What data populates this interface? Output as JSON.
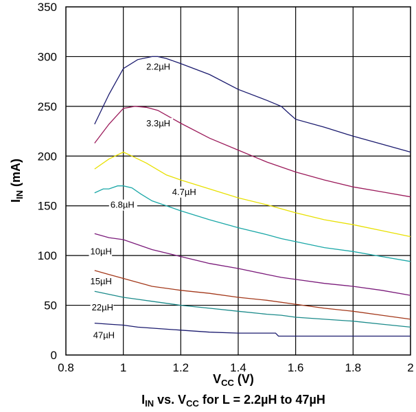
{
  "chart_data": {
    "type": "line",
    "xlim": [
      0.8,
      2.0
    ],
    "ylim": [
      0,
      350
    ],
    "x_ticks": [
      "0.8",
      "1",
      "1.2",
      "1.4",
      "1.6",
      "1.8",
      "2"
    ],
    "y_ticks": [
      "0",
      "50",
      "100",
      "150",
      "200",
      "250",
      "300",
      "350"
    ],
    "x_tick_values": [
      0.8,
      1.0,
      1.2,
      1.4,
      1.6,
      1.8,
      2.0
    ],
    "y_tick_values": [
      0,
      50,
      100,
      150,
      200,
      250,
      300,
      350
    ],
    "xlabel": {
      "main": "V",
      "sub": "CC",
      "rest": " (V)"
    },
    "ylabel": {
      "main": "I",
      "sub": "IN",
      "rest": " (mA)"
    },
    "caption": {
      "p1": "I",
      "p1sub": "IN",
      "p2": " vs. V",
      "p2sub": "CC",
      "p3": " for L = 2.2µH to 47µH"
    },
    "grid": true,
    "series": [
      {
        "name": "2.2µH",
        "color": "#1a1a6e",
        "label_at": [
          1.08,
          287
        ],
        "x": [
          0.9,
          0.95,
          1.0,
          1.05,
          1.1,
          1.12,
          1.15,
          1.2,
          1.3,
          1.4,
          1.5,
          1.55,
          1.58,
          1.6,
          1.7,
          1.8,
          1.9,
          2.0
        ],
        "y": [
          232,
          262,
          288,
          297,
          300,
          300,
          298,
          293,
          282,
          267,
          256,
          250,
          242,
          237,
          229,
          220,
          212,
          204
        ]
      },
      {
        "name": "3.3µH",
        "color": "#9b1a5a",
        "label_at": [
          1.08,
          230
        ],
        "x": [
          0.9,
          0.95,
          1.0,
          1.04,
          1.08,
          1.12,
          1.2,
          1.3,
          1.4,
          1.5,
          1.6,
          1.7,
          1.8,
          1.9,
          2.0
        ],
        "y": [
          213,
          232,
          248,
          250,
          249,
          246,
          233,
          218,
          206,
          194,
          184,
          176,
          169,
          164,
          159
        ]
      },
      {
        "name": "4.7µH",
        "color": "#e8e000",
        "label_at": [
          1.17,
          161
        ],
        "x": [
          0.9,
          0.95,
          1.0,
          1.03,
          1.08,
          1.15,
          1.2,
          1.3,
          1.4,
          1.5,
          1.6,
          1.7,
          1.8,
          1.9,
          2.0
        ],
        "y": [
          187,
          197,
          204,
          200,
          193,
          181,
          176,
          167,
          158,
          151,
          143,
          136,
          131,
          125,
          119
        ]
      },
      {
        "name": "6.8µH",
        "color": "#1aa7a7",
        "label_at": [
          0.955,
          148
        ],
        "x": [
          0.9,
          0.93,
          0.95,
          0.98,
          1.0,
          1.03,
          1.06,
          1.1,
          1.2,
          1.3,
          1.4,
          1.5,
          1.55,
          1.6,
          1.7,
          1.8,
          1.9,
          2.0
        ],
        "y": [
          163,
          167,
          167,
          170,
          170,
          168,
          162,
          155,
          145,
          136,
          128,
          121,
          117,
          114,
          108,
          104,
          99,
          94
        ]
      },
      {
        "name": "10µH",
        "color": "#7a1a7a",
        "label_at": [
          0.885,
          101
        ],
        "x": [
          0.9,
          0.95,
          1.0,
          1.05,
          1.1,
          1.2,
          1.3,
          1.4,
          1.5,
          1.55,
          1.6,
          1.7,
          1.8,
          1.9,
          2.0
        ],
        "y": [
          122,
          118,
          116,
          111,
          106,
          99,
          92,
          87,
          81,
          78,
          76,
          72,
          69,
          65,
          60
        ]
      },
      {
        "name": "15µH",
        "color": "#a3381a",
        "label_at": [
          0.885,
          71
        ],
        "x": [
          0.9,
          0.95,
          1.0,
          1.05,
          1.1,
          1.2,
          1.3,
          1.4,
          1.5,
          1.6,
          1.7,
          1.8,
          1.9,
          2.0
        ],
        "y": [
          85,
          81,
          77,
          73,
          69,
          65,
          62,
          58,
          55,
          51,
          47,
          44,
          40,
          36
        ]
      },
      {
        "name": "22µH",
        "color": "#1a8a8a",
        "label_at": [
          0.89,
          45
        ],
        "x": [
          0.9,
          0.95,
          1.0,
          1.05,
          1.1,
          1.2,
          1.3,
          1.4,
          1.5,
          1.55,
          1.6,
          1.7,
          1.8,
          1.9,
          2.0
        ],
        "y": [
          64,
          61,
          58,
          56,
          54,
          50,
          47,
          44,
          41,
          40,
          38,
          36,
          34,
          31,
          28
        ]
      },
      {
        "name": "47µH",
        "color": "#1a1a6e",
        "label_at": [
          0.895,
          17
        ],
        "x": [
          0.9,
          0.95,
          1.0,
          1.05,
          1.1,
          1.2,
          1.3,
          1.4,
          1.5,
          1.53,
          1.54,
          1.6,
          1.7,
          1.8,
          1.9,
          2.0
        ],
        "y": [
          32,
          31,
          30,
          28,
          27,
          25,
          23,
          22,
          22,
          22,
          19,
          19,
          19,
          19,
          19,
          19
        ]
      }
    ]
  }
}
